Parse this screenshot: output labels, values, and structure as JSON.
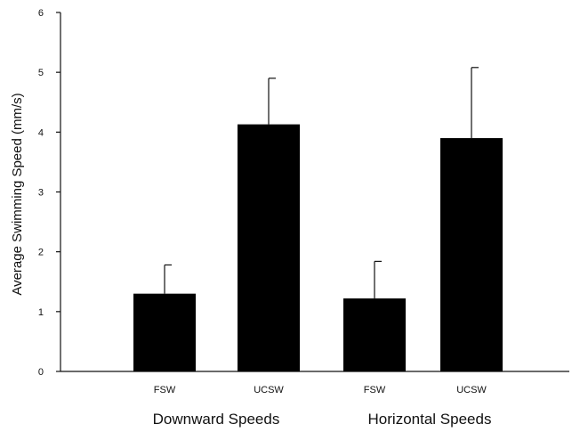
{
  "chart_data": {
    "type": "bar",
    "title": "",
    "xlabel": "",
    "ylabel": "Average Swimming Speed (mm/s)",
    "ylim": [
      0,
      6
    ],
    "yticks": [
      "0",
      "1",
      "2",
      "3",
      "4",
      "5",
      "6"
    ],
    "grid": false,
    "categories": [
      "FSW",
      "UCSW",
      "FSW",
      "UCSW"
    ],
    "groups": [
      "Downward Speeds",
      "Horizontal Speeds"
    ],
    "values": [
      1.3,
      4.13,
      1.22,
      3.9
    ],
    "error_plus": [
      0.48,
      0.77,
      0.62,
      1.18
    ],
    "bar_color": "#000000"
  }
}
